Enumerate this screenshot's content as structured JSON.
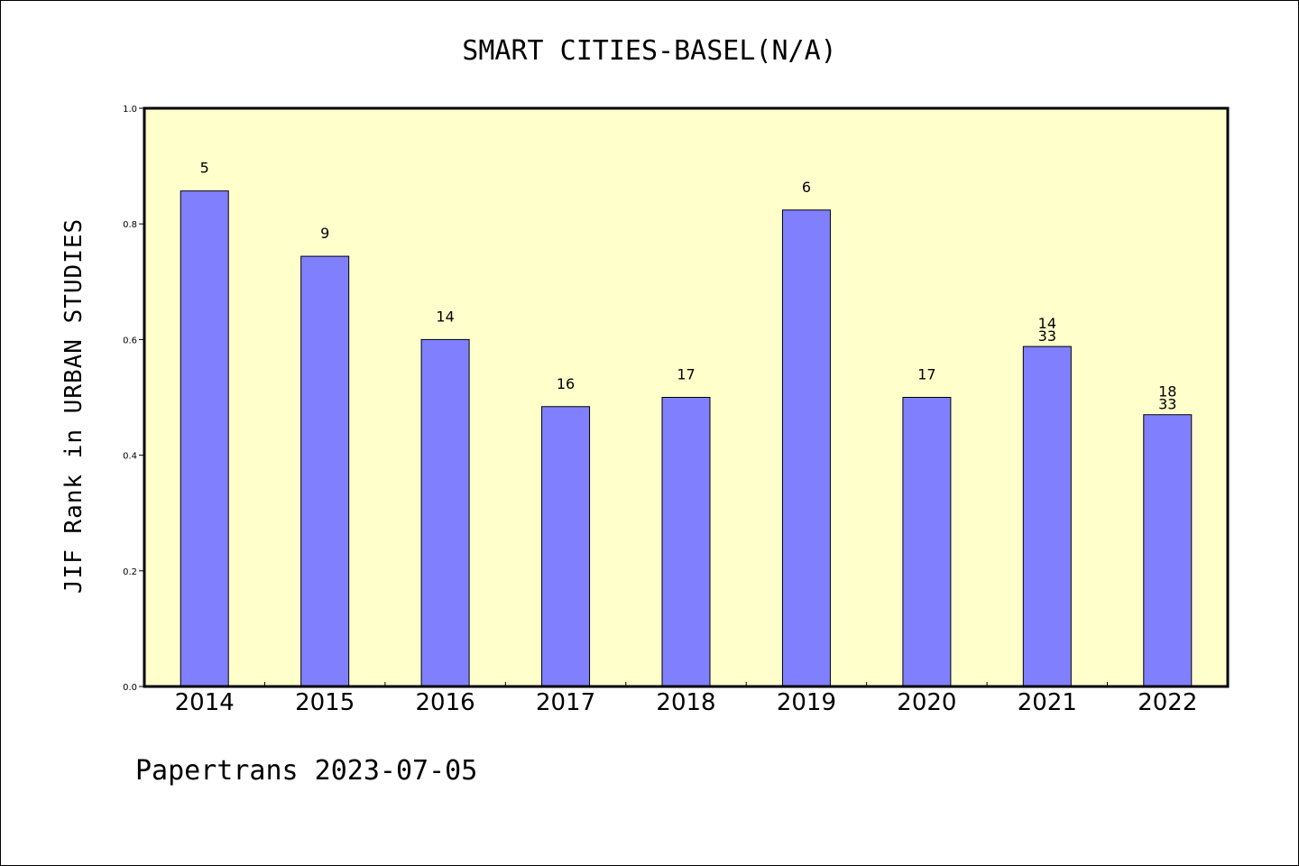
{
  "footer": "Papertrans 2023-07-05",
  "colors": {
    "plot_background": "#ffffcc",
    "bar_fill": "#8080ff",
    "bar_stroke": "#000000"
  },
  "chart_data": {
    "type": "bar",
    "title": "SMART CITIES-BASEL(N/A)",
    "xlabel": "",
    "ylabel": "JIF Rank in URBAN STUDIES",
    "ylim": [
      0,
      1.0
    ],
    "yticks": [
      "0.0",
      "0.2",
      "0.4",
      "0.6",
      "0.8",
      "1.0"
    ],
    "categories": [
      "2014",
      "2015",
      "2016",
      "2017",
      "2018",
      "2019",
      "2020",
      "2021",
      "2022"
    ],
    "values": [
      0.857,
      0.744,
      0.6,
      0.484,
      0.5,
      0.824,
      0.5,
      0.588,
      0.47
    ],
    "labels": [
      [
        "5"
      ],
      [
        "9"
      ],
      [
        "14"
      ],
      [
        "16"
      ],
      [
        "17"
      ],
      [
        "6"
      ],
      [
        "17"
      ],
      [
        "14",
        "33"
      ],
      [
        "18",
        "33"
      ]
    ],
    "grid": false,
    "legend": "none"
  }
}
